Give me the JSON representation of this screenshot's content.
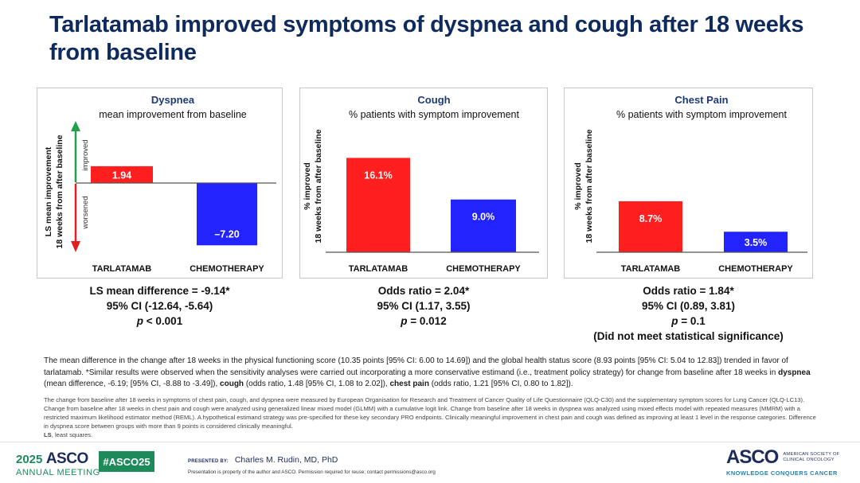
{
  "title": "Tarlatamab improved symptoms of dyspnea and cough after 18 weeks from baseline",
  "colors": {
    "title": "#0f2a5c",
    "tarlatamab": "#ff1f1f",
    "chemotherapy": "#2323ff",
    "improved_arrow": "#21a04a",
    "worsened_arrow": "#e02020",
    "brand_green": "#1d8a5a",
    "brand_navy": "#1d2b5c"
  },
  "chart_data": [
    {
      "type": "bar",
      "title": "Dyspnea",
      "subtitle": "mean improvement from baseline",
      "ylabel": [
        "LS mean improvement",
        "18 weeks from after baseline"
      ],
      "direction_labels": {
        "up": "improved",
        "down": "worsened"
      },
      "categories": [
        "TARLATAMAB",
        "CHEMOTHERAPY"
      ],
      "values": [
        1.94,
        -7.2
      ],
      "value_labels": [
        "1.94",
        "–7.20"
      ],
      "ylim": [
        -8,
        7.5
      ],
      "grid": false
    },
    {
      "type": "bar",
      "title": "Cough",
      "subtitle": "% patients with symptom improvement",
      "ylabel": [
        "% improved",
        "18 weeks from after baseline"
      ],
      "categories": [
        "TARLATAMAB",
        "CHEMOTHERAPY"
      ],
      "values": [
        16.1,
        9.0
      ],
      "value_labels": [
        "16.1%",
        "9.0%"
      ],
      "ylim": [
        0,
        22
      ],
      "grid": false
    },
    {
      "type": "bar",
      "title": "Chest Pain",
      "subtitle": "% patients with symptom improvement",
      "ylabel": [
        "% improved",
        "18 weeks from after baseline"
      ],
      "categories": [
        "TARLATAMAB",
        "CHEMOTHERAPY"
      ],
      "values": [
        8.7,
        3.5
      ],
      "value_labels": [
        "8.7%",
        "3.5%"
      ],
      "ylim": [
        0,
        22
      ],
      "grid": false
    }
  ],
  "stats": [
    {
      "line1": "LS mean difference = -9.14*",
      "line2": "95% CI (-12.64, -5.64)",
      "p_label": "p",
      "p_value": " < 0.001",
      "line4": ""
    },
    {
      "line1": "Odds ratio = 2.04*",
      "line2": "95% CI (1.17, 3.55)",
      "p_label": "p",
      "p_value": " = 0.012",
      "line4": ""
    },
    {
      "line1": "Odds ratio = 1.84*",
      "line2": "95% CI (0.89, 3.81)",
      "p_label": "p",
      "p_value": " = 0.1",
      "line4": "(Did not meet statistical significance)"
    }
  ],
  "note": {
    "part1": "The mean difference in the change after 18 weeks in the physical functioning score (10.35 points [95% CI: 6.00 to 14.69]) and the global health status score (8.93 points [95% CI: 5.04 to 12.83]) trended in favor of tarlatamab.  *Similar results were observed when the sensitivity analyses were carried out incorporating a more conservative estimand (i.e., treatment policy strategy) for change from baseline after 18 weeks in ",
    "dyspnea_bold": "dyspnea",
    "part2": " (mean difference, -6.19; [95% CI, -8.88 to -3.49]), ",
    "cough_bold": "cough",
    "part3": " (odds ratio, 1.48 [95% CI, 1.08 to 2.02]), ",
    "chest_bold": "chest pain",
    "part4": " (odds ratio, 1.21 [95% CI, 0.80 to 1.82])."
  },
  "fineprint": {
    "body": "The change from baseline after 18 weeks in symptoms of chest pain, cough, and dyspnea were measured by European Organisation for Research and Treatment of Cancer Quality of Life Questionnaire (QLQ-C30) and the supplementary symptom scores for Lung Cancer (QLQ-LC13). Change from baseline after 18 weeks in chest pain and cough were analyzed using generalized linear mixed model (GLMM) with a cumulative logit link. Change from baseline after 18 weeks in dyspnea was analyzed using mixed effects model with repeated measures (MMRM) with a restricted maximum likelihood estimator method (REML). A hypothetical estimand strategy was pre-specified for these key secondary PRO endpoints. Clinically meaningful improvement in chest pain and cough was defined as improving at least 1 level in the response categories. Difference in dyspnea score between groups with more than 9 points is considered clinically meaningful.",
    "abbr_bold": "LS",
    "abbr_rest": ", least squares."
  },
  "footer": {
    "meeting_year": "2025",
    "meeting_brand": "ASCO",
    "meeting_sub": "ANNUAL MEETING",
    "hashtag": "#ASCO25",
    "presented_by_label": "PRESENTED BY:",
    "presenter": "Charles M. Rudin, MD, PhD",
    "permission": "Presentation is property of the author and ASCO. Permission required for reuse; contact permissions@asco.org",
    "org_brand": "ASCO",
    "org_full_1": "AMERICAN SOCIETY OF",
    "org_full_2": "CLINICAL ONCOLOGY",
    "org_tagline": "KNOWLEDGE CONQUERS CANCER"
  }
}
